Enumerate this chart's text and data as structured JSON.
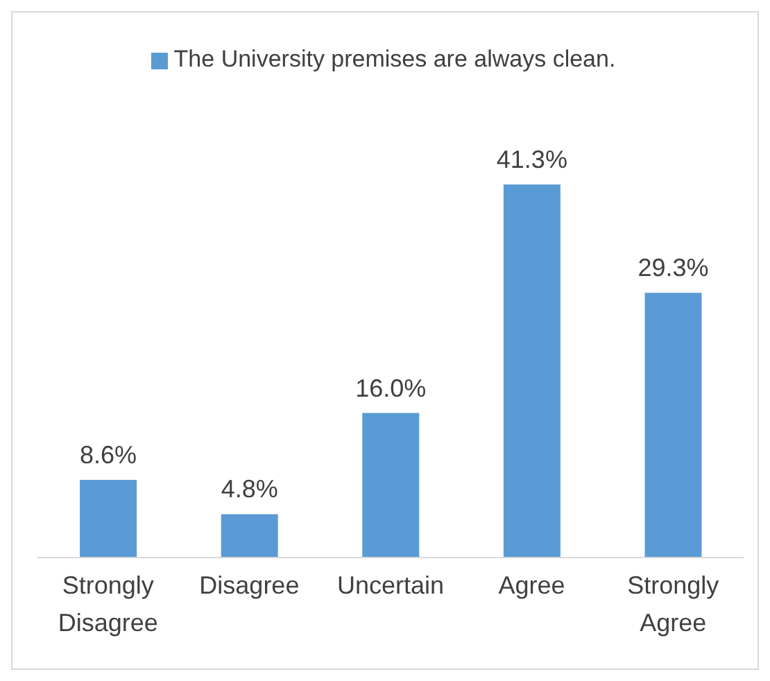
{
  "chart_data": {
    "type": "bar",
    "categories": [
      "Strongly Disagree",
      "Disagree",
      "Uncertain",
      "Agree",
      "Strongly Agree"
    ],
    "series": [
      {
        "name": "The University premises are always clean.",
        "color": "#5b9bd5",
        "values": [
          8.6,
          4.8,
          16.0,
          41.3,
          29.3
        ],
        "value_labels": [
          "8.6%",
          "4.8%",
          "16.0%",
          "41.3%",
          "29.3%"
        ]
      }
    ],
    "legend": "top"
  }
}
